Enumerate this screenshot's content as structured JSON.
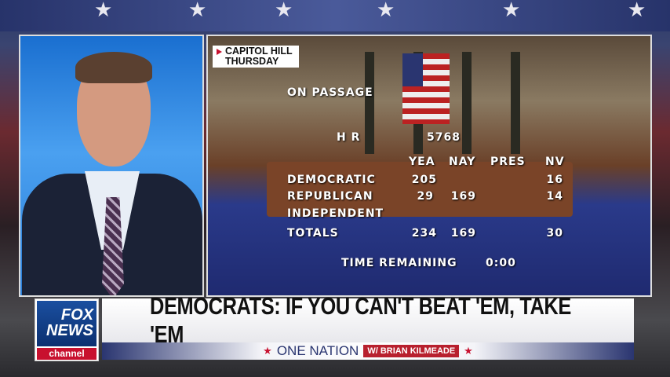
{
  "location_bug": {
    "line1": "CAPITOL HILL",
    "line2": "THURSDAY"
  },
  "vote": {
    "title": "ON PASSAGE",
    "bill_label": "H R",
    "bill_number": "5768",
    "columns": [
      "YEA",
      "NAY",
      "PRES",
      "NV"
    ],
    "rows": [
      {
        "party": "DEMOCRATIC",
        "yea": "205",
        "nay": "",
        "pres": "",
        "nv": "16"
      },
      {
        "party": "REPUBLICAN",
        "yea": "29",
        "nay": "169",
        "pres": "",
        "nv": "14"
      },
      {
        "party": "INDEPENDENT",
        "yea": "",
        "nay": "",
        "pres": "",
        "nv": ""
      },
      {
        "party": "TOTALS",
        "yea": "234",
        "nay": "169",
        "pres": "",
        "nv": "30"
      }
    ],
    "time_label": "TIME REMAINING",
    "time_value": "0:00"
  },
  "logo": {
    "line1": "FOX",
    "line2": "NEWS",
    "line3": "channel"
  },
  "lower_third": {
    "headline": "DEMOCRATS: IF YOU CAN'T BEAT 'EM, TAKE 'EM",
    "show": "ONE NATION",
    "host": "W/ BRIAN KILMEADE"
  },
  "colors": {
    "fox_red": "#c8102e",
    "fox_blue": "#1a4fa0",
    "navy": "#2a3570"
  }
}
